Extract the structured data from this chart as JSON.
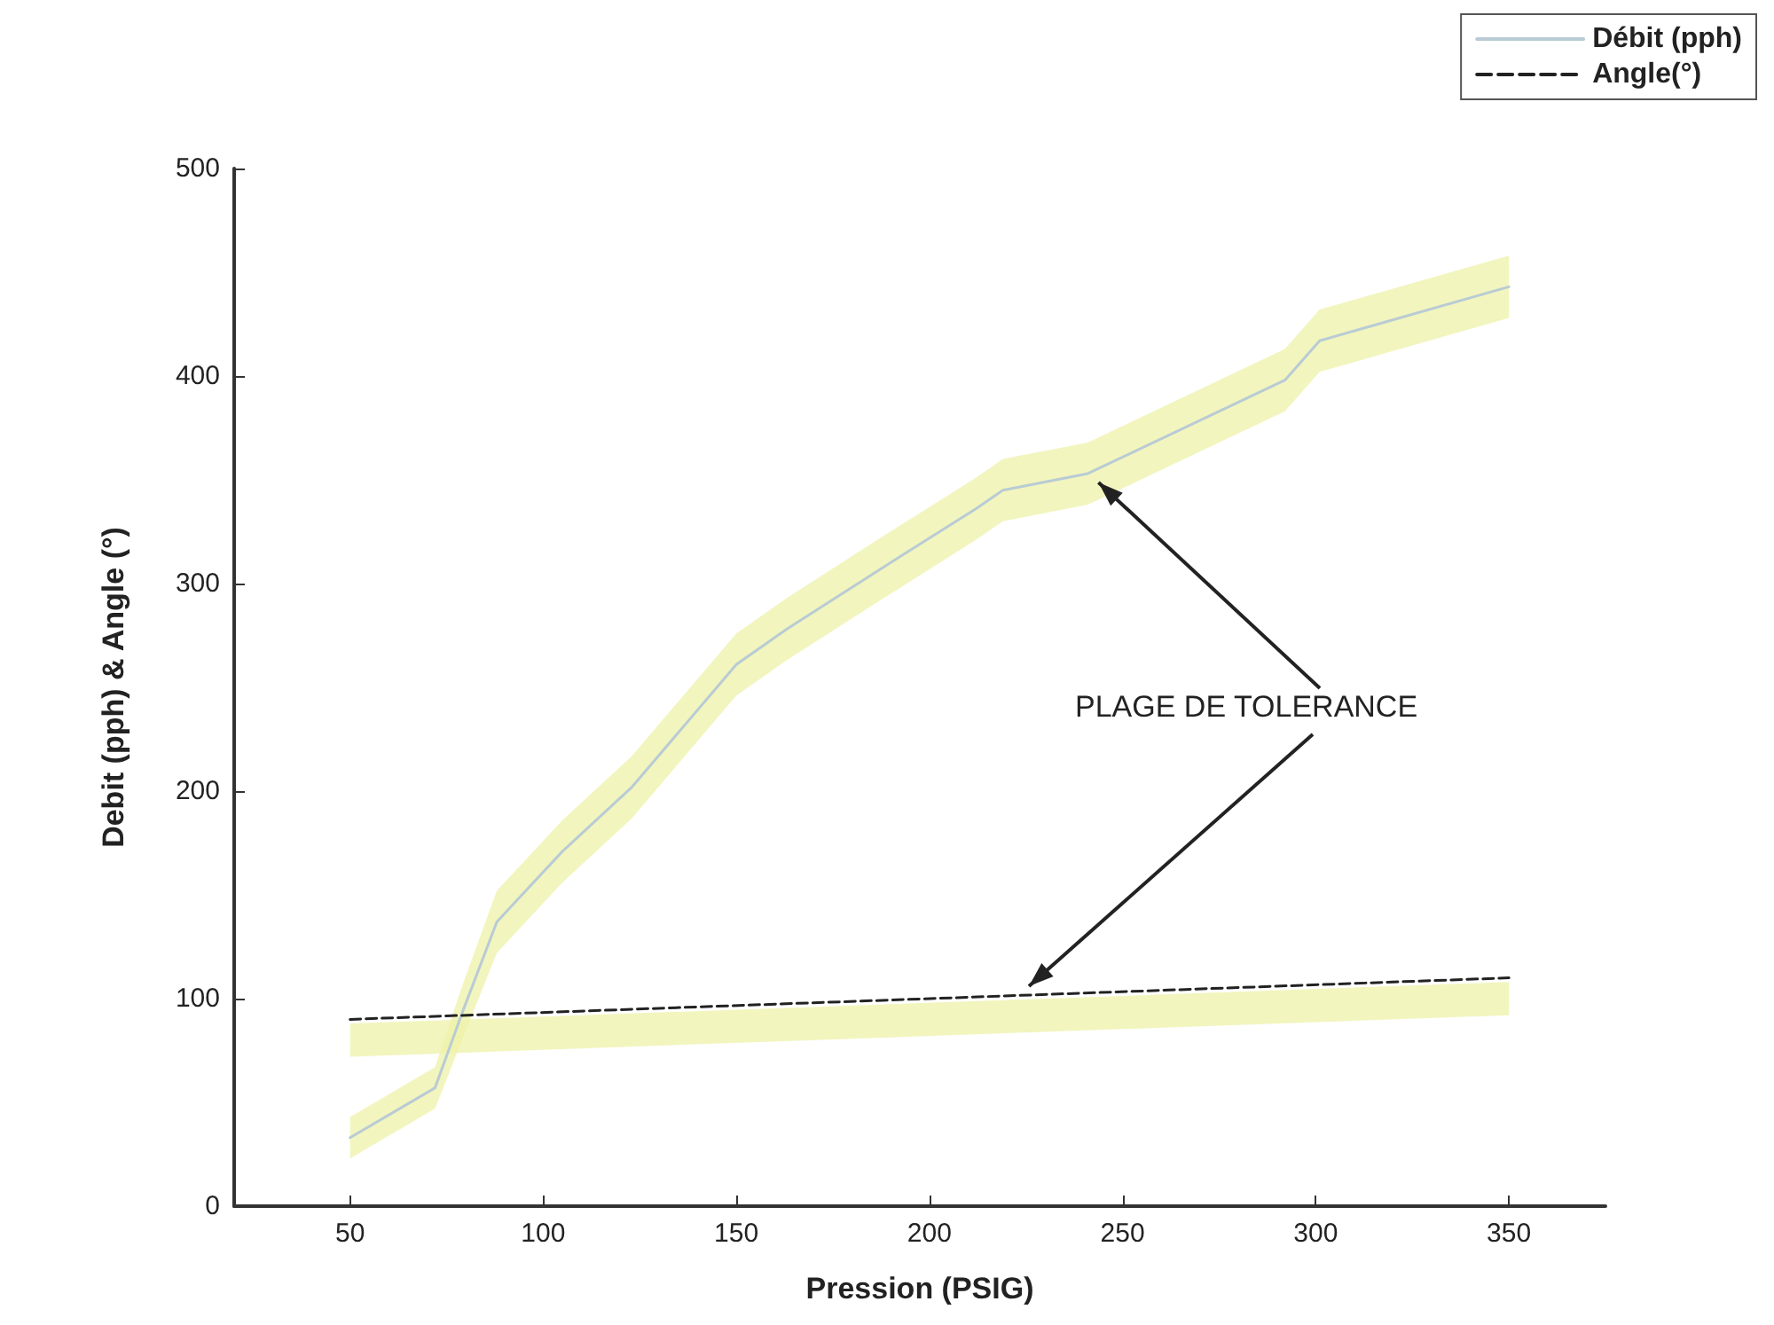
{
  "chart_data": {
    "type": "line",
    "xlabel": "Pression (PSIG)",
    "ylabel": "Debit (pph) & Angle (°)",
    "xlim": [
      20,
      375
    ],
    "xticks": [
      50,
      100,
      150,
      200,
      250,
      300,
      350
    ],
    "ylim": [
      0,
      500
    ],
    "yticks": [
      0,
      100,
      200,
      300,
      400,
      500
    ],
    "grid": false,
    "legend": "top right",
    "marker": "none",
    "annotations": [
      {
        "text": "PLAGE DE TOLERANCE",
        "x": 241,
        "y": 353
      }
    ],
    "series": [
      {
        "name": "Débit (pph)",
        "color": "#b9cbd4",
        "line_style": "solid",
        "x": [
          50,
          72,
          79,
          88,
          105,
          123,
          150,
          163,
          189,
          212,
          219,
          241,
          292,
          301,
          350
        ],
        "values": [
          33,
          57,
          93,
          137,
          171,
          202,
          261,
          278,
          309,
          336,
          345,
          353,
          398,
          417,
          443
        ],
        "lower": [
          23,
          47,
          80,
          122,
          156,
          187,
          246,
          263,
          294,
          321,
          330,
          338,
          383,
          402,
          428
        ],
        "upper": [
          43,
          67,
          106,
          152,
          186,
          217,
          276,
          293,
          324,
          351,
          360,
          368,
          413,
          432,
          458
        ]
      },
      {
        "name": "Angle(°)",
        "color": "#222222",
        "line_style": "dashed",
        "x": [
          50,
          350
        ],
        "values": [
          90,
          110
        ],
        "lower": [
          72,
          92
        ],
        "upper": [
          88,
          108
        ]
      }
    ]
  }
}
